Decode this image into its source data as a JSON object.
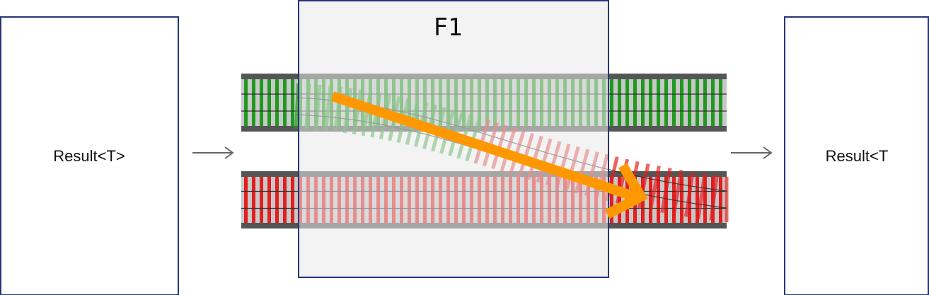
{
  "input_box": {
    "label": "Result<T>"
  },
  "output_box": {
    "label": "Result<T"
  },
  "function_box": {
    "label": "F1"
  },
  "colors": {
    "box_border": "#26357a",
    "function_fill": "#e9e9e9",
    "ok_track": "#1f9a1f",
    "err_track": "#e41e1e",
    "track_frame": "#555555",
    "switch_arrow": "#ff9800",
    "flow_arrow": "#666666"
  },
  "icons": {
    "flow_arrow_left": "right-arrow-icon",
    "flow_arrow_right": "right-arrow-icon",
    "switch_arrow": "diagonal-arrow-icon"
  }
}
